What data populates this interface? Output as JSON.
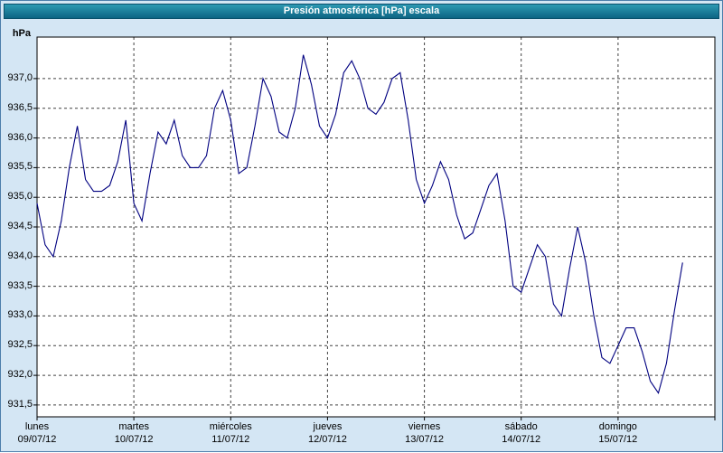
{
  "window": {
    "title": "Presión atmosférica [hPa] escala"
  },
  "chart_data": {
    "type": "line",
    "title": "Presión atmosférica [hPa] escala",
    "ylabel": "hPa",
    "xlabel": "",
    "grid": true,
    "legend": "none",
    "ylim": [
      931.3,
      937.7
    ],
    "xlim_hours": [
      0,
      168
    ],
    "x_hours_step": 2,
    "y_ticks": [
      937.0,
      936.5,
      936.0,
      935.5,
      935.0,
      934.5,
      934.0,
      933.5,
      933.0,
      932.5,
      932.0,
      931.5
    ],
    "y_tick_labels": [
      "937,0",
      "936,5",
      "936,0",
      "935,5",
      "935,0",
      "934,5",
      "934,0",
      "933,5",
      "933,0",
      "932,5",
      "932,0",
      "931,5"
    ],
    "x_days": [
      {
        "name": "lunes",
        "date": "09/07/12"
      },
      {
        "name": "martes",
        "date": "10/07/12"
      },
      {
        "name": "miércoles",
        "date": "11/07/12"
      },
      {
        "name": "jueves",
        "date": "12/07/12"
      },
      {
        "name": "viernes",
        "date": "13/07/12"
      },
      {
        "name": "sábado",
        "date": "14/07/12"
      },
      {
        "name": "domingo",
        "date": "15/07/12"
      }
    ],
    "line_color": "#000080",
    "series": [
      {
        "name": "Presión atmosférica",
        "color": "#000080",
        "values": [
          934.9,
          934.2,
          934.0,
          934.6,
          935.5,
          936.2,
          935.3,
          935.1,
          935.1,
          935.2,
          935.6,
          936.3,
          934.9,
          934.6,
          935.4,
          936.1,
          935.9,
          936.3,
          935.7,
          935.5,
          935.5,
          935.7,
          936.5,
          936.8,
          936.3,
          935.4,
          935.5,
          936.2,
          937.0,
          936.7,
          936.1,
          936.0,
          936.5,
          937.4,
          936.9,
          936.2,
          936.0,
          936.4,
          937.1,
          937.3,
          937.0,
          936.5,
          936.4,
          936.6,
          937.0,
          937.1,
          936.3,
          935.3,
          934.9,
          935.2,
          935.6,
          935.3,
          934.7,
          934.3,
          934.4,
          934.8,
          935.2,
          935.4,
          934.6,
          933.5,
          933.4,
          933.8,
          934.2,
          934.0,
          933.2,
          933.0,
          933.8,
          934.5,
          933.9,
          933.0,
          932.3,
          932.2,
          932.5,
          932.8,
          932.8,
          932.4,
          931.9,
          931.7,
          932.2,
          933.1,
          933.9
        ]
      }
    ]
  }
}
